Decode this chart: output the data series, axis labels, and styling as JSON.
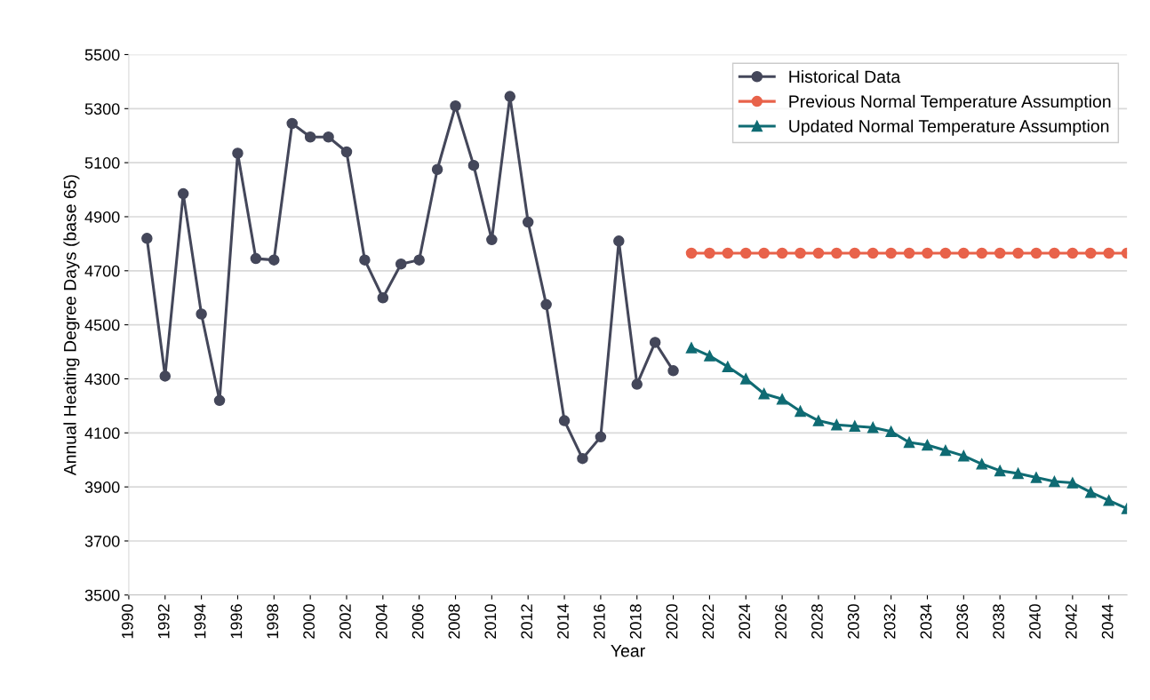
{
  "chart_data": {
    "type": "line",
    "xlabel": "Year",
    "ylabel": "Annual Heating Degree Days (base 65)",
    "xlim": [
      1990,
      2045
    ],
    "xticks": [
      1990,
      1992,
      1994,
      1996,
      1998,
      2000,
      2002,
      2004,
      2006,
      2008,
      2010,
      2012,
      2014,
      2016,
      2018,
      2020,
      2022,
      2024,
      2026,
      2028,
      2030,
      2032,
      2034,
      2036,
      2038,
      2040,
      2042,
      2044
    ],
    "ylim": [
      3500,
      5500
    ],
    "yticks": [
      3500,
      3700,
      3900,
      4100,
      4300,
      4500,
      4700,
      4900,
      5100,
      5300,
      5500
    ],
    "grid": "y",
    "legend": "top right",
    "line_style": "solid",
    "series": [
      {
        "name": "Historical Data",
        "color": "#44475a",
        "marker": "circle",
        "x": [
          1991,
          1992,
          1993,
          1994,
          1995,
          1996,
          1997,
          1998,
          1999,
          2000,
          2001,
          2002,
          2003,
          2004,
          2005,
          2006,
          2007,
          2008,
          2009,
          2010,
          2011,
          2012,
          2013,
          2014,
          2015,
          2016,
          2017,
          2018,
          2019,
          2020
        ],
        "values": [
          4820,
          4310,
          4985,
          4540,
          4220,
          5135,
          4745,
          4740,
          5245,
          5195,
          5195,
          5140,
          4740,
          4600,
          4725,
          4740,
          5075,
          5310,
          5090,
          4815,
          5345,
          4880,
          4575,
          4145,
          4005,
          4085,
          4810,
          4280,
          4435,
          4330
        ]
      },
      {
        "name": "Previous Normal Temperature Assumption",
        "color": "#e8624a",
        "marker": "circle",
        "x": [
          2021,
          2022,
          2023,
          2024,
          2025,
          2026,
          2027,
          2028,
          2029,
          2030,
          2031,
          2032,
          2033,
          2034,
          2035,
          2036,
          2037,
          2038,
          2039,
          2040,
          2041,
          2042,
          2043,
          2044,
          2045
        ],
        "values": [
          4765,
          4765,
          4765,
          4765,
          4765,
          4765,
          4765,
          4765,
          4765,
          4765,
          4765,
          4765,
          4765,
          4765,
          4765,
          4765,
          4765,
          4765,
          4765,
          4765,
          4765,
          4765,
          4765,
          4765,
          4765
        ]
      },
      {
        "name": "Updated Normal Temperature Assumption",
        "color": "#0f6b73",
        "marker": "triangle",
        "x": [
          2021,
          2022,
          2023,
          2024,
          2025,
          2026,
          2027,
          2028,
          2029,
          2030,
          2031,
          2032,
          2033,
          2034,
          2035,
          2036,
          2037,
          2038,
          2039,
          2040,
          2041,
          2042,
          2043,
          2044,
          2045
        ],
        "values": [
          4415,
          4385,
          4345,
          4300,
          4245,
          4225,
          4180,
          4145,
          4130,
          4125,
          4120,
          4105,
          4065,
          4055,
          4035,
          4015,
          3985,
          3960,
          3950,
          3935,
          3920,
          3915,
          3880,
          3850,
          3820
        ]
      }
    ]
  }
}
